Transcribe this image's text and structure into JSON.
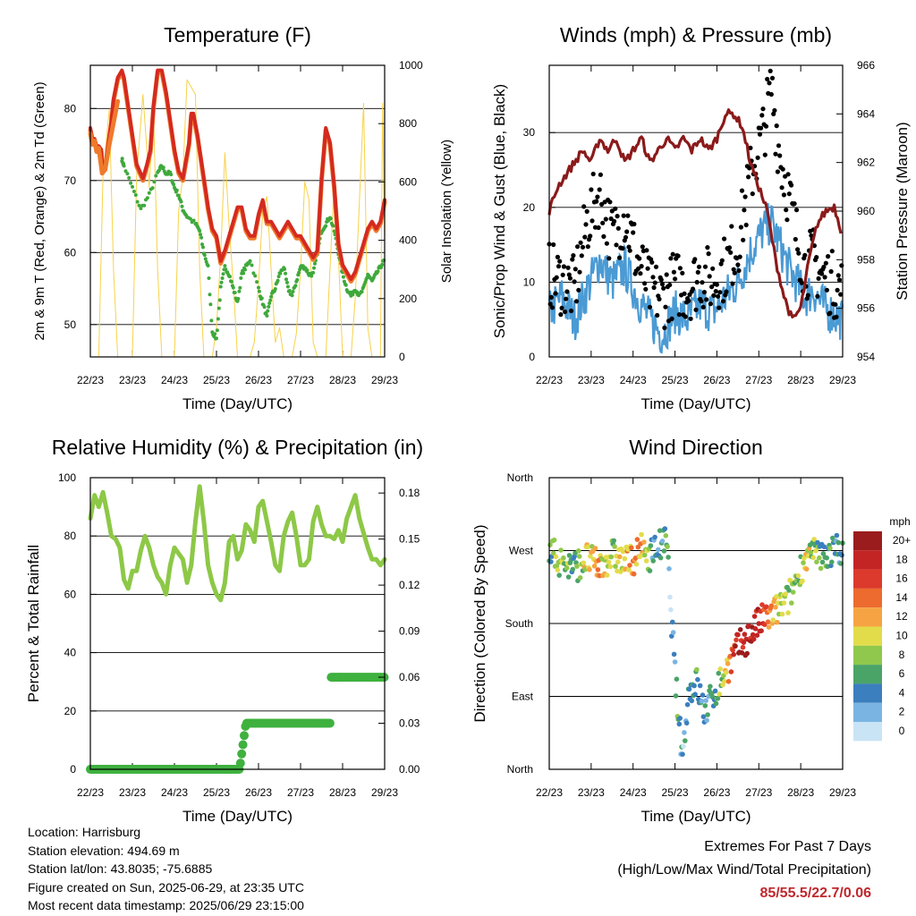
{
  "info": {
    "location": "Location: Harrisburg",
    "elevation": "Station elevation: 494.69 m",
    "latlon": "Station lat/lon: 43.8035; -75.6885",
    "created": "Figure created on Sun, 2025-06-29, at 23:35 UTC",
    "timestamp": "Most recent data timestamp: 2025/06/29 23:15:00"
  },
  "extremes": {
    "title": "Extremes For Past 7 Days",
    "subtitle": "(High/Low/Max Wind/Total Precipitation)",
    "values": "85/55.5/22.7/0.06"
  },
  "colors": {
    "temp2m": "#f07a2c",
    "temp9m": "#d42a20",
    "dewpoint": "#3fa83c",
    "solar": "#f7d24a",
    "wind": "#4a9ad4",
    "gust": "#000000",
    "pressure": "#8b1a1a",
    "rh": "#8dc847",
    "rain": "#3fb13f"
  },
  "chart_data": [
    {
      "type": "line",
      "title": "Temperature (F)",
      "xlabel": "Time (Day/UTC)",
      "ylabel": "2m & 9m T (Red, Orange) & 2m Td (Green)",
      "y2label": "Solar Insolation (Yellow)",
      "x_ticks": [
        "22/23",
        "23/23",
        "24/23",
        "25/23",
        "26/23",
        "27/23",
        "28/23",
        "29/23"
      ],
      "ylim": [
        45.5,
        86
      ],
      "y_ticks": [
        50,
        60,
        70,
        80
      ],
      "y2lim": [
        0,
        1000
      ],
      "y2_ticks": [
        0,
        200,
        400,
        600,
        800,
        1000
      ],
      "grid": true,
      "series": [
        {
          "key": "temp2m",
          "x": [
            0,
            0.05,
            0.1,
            0.15,
            0.2,
            0.28,
            0.35,
            0.45,
            0.55,
            0.65
          ],
          "values": [
            76.5,
            75,
            75.5,
            74,
            74.5,
            71,
            71.5,
            75,
            78,
            81
          ]
        },
        {
          "key": "temp9m",
          "x": [
            0,
            0.05,
            0.1,
            0.15,
            0.2,
            0.26,
            0.28,
            0.35,
            0.43,
            0.5,
            0.55,
            0.65,
            0.75,
            0.8,
            0.9,
            1.0,
            1.1,
            1.25,
            1.35,
            1.43,
            1.5,
            1.6,
            1.7,
            1.8,
            1.9,
            2.0,
            2.1,
            2.2,
            2.35,
            2.4,
            2.45,
            2.55,
            2.65,
            2.75,
            2.8,
            2.9,
            3.0,
            3.1,
            3.2,
            3.3,
            3.4,
            3.5,
            3.6,
            3.7,
            3.8,
            3.9,
            4.0,
            4.1,
            4.2,
            4.3,
            4.4,
            4.5,
            4.6,
            4.7,
            4.8,
            4.9,
            5.0,
            5.1,
            5.2,
            5.3,
            5.4,
            5.5,
            5.6,
            5.7,
            5.8,
            5.9,
            6.0,
            6.1,
            6.2,
            6.3,
            6.4,
            6.5,
            6.6,
            6.7,
            6.8,
            6.9,
            7.0
          ],
          "values": [
            77,
            75.5,
            75.5,
            74.5,
            74.5,
            74,
            72,
            71.5,
            75,
            78,
            81,
            84,
            85,
            84,
            80,
            76,
            72,
            70,
            72,
            74,
            80,
            85,
            85,
            82,
            78,
            74,
            71,
            70,
            75,
            79,
            79,
            76,
            72,
            68,
            66,
            63,
            62,
            58.5,
            60,
            62,
            64,
            66,
            66,
            63,
            62,
            62,
            65,
            67,
            64,
            64,
            63,
            62,
            63,
            64,
            63,
            62,
            62,
            61,
            60,
            59,
            60,
            70,
            77,
            75,
            69,
            61,
            58,
            57,
            56,
            57,
            59,
            61,
            63,
            64,
            63,
            64,
            67
          ]
        },
        {
          "key": "dewpoint",
          "x": [
            0.75,
            0.8,
            1.0,
            1.2,
            1.4,
            1.6,
            1.7,
            1.8,
            1.9,
            2.0,
            2.1,
            2.2,
            2.3,
            2.5,
            2.6,
            2.7,
            2.8,
            2.9,
            3.0,
            3.1,
            3.2,
            3.3,
            3.4,
            3.5,
            3.6,
            3.7,
            3.8,
            4.0,
            4.1,
            4.2,
            4.3,
            4.4,
            4.5,
            4.6,
            4.7,
            4.8,
            4.9,
            5.0,
            5.1,
            5.2,
            5.3,
            5.4,
            5.5,
            5.6,
            5.7,
            5.8,
            5.9,
            6.0,
            6.1,
            6.2,
            6.3,
            6.4,
            6.5,
            6.6,
            6.7,
            6.8,
            6.9,
            7.0
          ],
          "values": [
            73,
            72,
            69,
            66,
            68,
            71,
            72,
            71,
            71,
            69,
            68,
            66,
            65,
            64,
            63,
            60,
            58,
            49,
            48,
            55,
            58,
            57,
            55,
            53,
            57,
            58,
            59,
            55,
            53,
            51,
            54,
            55,
            57,
            58,
            55,
            54,
            56,
            58,
            58,
            57,
            57,
            60,
            63,
            64,
            65,
            63,
            60,
            57,
            55,
            54,
            55,
            54,
            55,
            57,
            56,
            57,
            58,
            59
          ]
        },
        {
          "key": "solar",
          "axis": "y2",
          "x": [
            0.1,
            0.2,
            0.3,
            0.45,
            0.55,
            0.65,
            0.75,
            0.9,
            1.0,
            1.1,
            1.25,
            1.35,
            1.4,
            1.5,
            1.6,
            1.7,
            1.8,
            1.9,
            2.0,
            2.1,
            2.2,
            2.3,
            2.5,
            2.6,
            2.7,
            2.8,
            2.9,
            3.0,
            3.1,
            3.2,
            3.3,
            3.4,
            3.5,
            3.6,
            3.7,
            3.8,
            3.9,
            4.0,
            4.1,
            4.2,
            4.4,
            4.5,
            4.6,
            4.7,
            4.8,
            4.9,
            5.0,
            5.1,
            5.2,
            5.3,
            5.4,
            5.5,
            5.6,
            5.7,
            5.8,
            5.9,
            6.0,
            6.1,
            6.2,
            6.3,
            6.5,
            6.6,
            6.7,
            6.8,
            6.9,
            6.95,
            7.0
          ],
          "values": [
            0,
            0,
            620,
            850,
            300,
            0,
            0,
            0,
            0,
            620,
            900,
            700,
            580,
            850,
            300,
            0,
            0,
            0,
            0,
            500,
            620,
            950,
            900,
            300,
            0,
            0,
            0,
            100,
            350,
            700,
            450,
            250,
            0,
            0,
            0,
            0,
            50,
            250,
            500,
            550,
            50,
            100,
            0,
            0,
            0,
            80,
            300,
            600,
            540,
            50,
            0,
            0,
            0,
            300,
            600,
            350,
            0,
            0,
            0,
            200,
            870,
            100,
            0,
            0,
            0,
            870,
            400
          ]
        }
      ]
    },
    {
      "type": "line",
      "title": "Winds (mph) & Pressure (mb)",
      "xlabel": "Time (Day/UTC)",
      "ylabel": "Sonic/Prop Wind & Gust (Blue, Black)",
      "y2label": "Station Pressure (Maroon)",
      "x_ticks": [
        "22/23",
        "23/23",
        "24/23",
        "25/23",
        "26/23",
        "27/23",
        "28/23",
        "29/23"
      ],
      "ylim": [
        0,
        39
      ],
      "y_ticks": [
        0,
        10,
        20,
        30
      ],
      "y2lim": [
        954,
        966
      ],
      "y2_ticks": [
        954,
        956,
        958,
        960,
        962,
        964,
        966
      ],
      "grid": true,
      "series": [
        {
          "key": "wind",
          "x": [
            0,
            0.3,
            0.6,
            0.9,
            1.2,
            1.5,
            1.8,
            2.1,
            2.4,
            2.7,
            3.0,
            3.3,
            3.6,
            3.9,
            4.2,
            4.5,
            4.8,
            5.1,
            5.3,
            5.5,
            5.7,
            5.9,
            6.1,
            6.3,
            6.5,
            6.7,
            7.0
          ],
          "values": [
            6,
            8,
            5,
            9,
            13,
            10,
            12,
            8,
            5,
            3,
            6,
            5,
            7,
            6,
            8,
            10,
            14,
            17,
            18,
            15,
            12,
            10,
            8,
            9,
            7,
            6,
            5
          ]
        },
        {
          "key": "gust",
          "x": [
            0,
            0.3,
            0.6,
            0.9,
            1.2,
            1.5,
            1.8,
            2.1,
            2.4,
            2.7,
            3.0,
            3.3,
            3.6,
            3.9,
            4.2,
            4.5,
            4.8,
            5.1,
            5.3,
            5.5,
            5.7,
            5.9,
            6.1,
            6.3,
            6.5,
            6.7,
            7.0
          ],
          "values": [
            11,
            10,
            9,
            18,
            22,
            16,
            19,
            13,
            9,
            8,
            10,
            9,
            11,
            10,
            12,
            15,
            24,
            30,
            36,
            27,
            22,
            16,
            12,
            13,
            11,
            10,
            9
          ]
        },
        {
          "key": "pressure",
          "axis": "y2",
          "x": [
            0,
            0.2,
            0.4,
            0.6,
            0.8,
            1.0,
            1.2,
            1.4,
            1.6,
            1.8,
            2.0,
            2.2,
            2.4,
            2.6,
            2.8,
            3.0,
            3.2,
            3.4,
            3.6,
            3.8,
            4.0,
            4.2,
            4.4,
            4.6,
            4.8,
            5.0,
            5.2,
            5.4,
            5.6,
            5.8,
            6.0,
            6.2,
            6.4,
            6.6,
            6.8,
            7.0
          ],
          "values": [
            960,
            961,
            961.5,
            962,
            962.5,
            962,
            963,
            962.5,
            963,
            962,
            962.5,
            963,
            962,
            962.5,
            963,
            962.5,
            963,
            962.5,
            963,
            962.5,
            963,
            964,
            964,
            963.5,
            962,
            961,
            960,
            958,
            956.5,
            955.5,
            956,
            958,
            959.5,
            960,
            960.2,
            959
          ]
        }
      ]
    },
    {
      "type": "line",
      "title": "Relative Humidity (%) & Precipitation (in)",
      "xlabel": "Time (Day/UTC)",
      "ylabel": "Percent & Total Rainfall",
      "x_ticks": [
        "22/23",
        "23/23",
        "24/23",
        "25/23",
        "26/23",
        "27/23",
        "28/23",
        "29/23"
      ],
      "ylim": [
        0,
        100
      ],
      "y_ticks": [
        0,
        20,
        40,
        60,
        80,
        100
      ],
      "y2lim": [
        0,
        0.19
      ],
      "y2_ticks": [
        "0.00",
        "0.03",
        "0.06",
        "0.09",
        "0.12",
        "0.15",
        "0.18"
      ],
      "grid": true,
      "series": [
        {
          "key": "rh",
          "x": [
            0,
            0.1,
            0.2,
            0.3,
            0.4,
            0.5,
            0.6,
            0.7,
            0.8,
            0.9,
            1.0,
            1.1,
            1.2,
            1.3,
            1.4,
            1.5,
            1.6,
            1.7,
            1.8,
            1.9,
            2.0,
            2.1,
            2.2,
            2.3,
            2.4,
            2.5,
            2.6,
            2.7,
            2.8,
            2.9,
            3.0,
            3.1,
            3.2,
            3.3,
            3.4,
            3.5,
            3.6,
            3.7,
            3.8,
            3.9,
            4.0,
            4.1,
            4.2,
            4.3,
            4.4,
            4.5,
            4.6,
            4.7,
            4.8,
            4.9,
            5.0,
            5.1,
            5.2,
            5.3,
            5.4,
            5.5,
            5.6,
            5.7,
            5.8,
            5.9,
            6.0,
            6.1,
            6.2,
            6.3,
            6.4,
            6.5,
            6.6,
            6.7,
            6.8,
            6.9,
            7.0
          ],
          "values": [
            86,
            94,
            90,
            95,
            88,
            80,
            79,
            76,
            65,
            62,
            68,
            68,
            75,
            80,
            76,
            70,
            66,
            64,
            60,
            70,
            76,
            74,
            72,
            64,
            70,
            85,
            97,
            85,
            70,
            64,
            60,
            58,
            64,
            78,
            80,
            72,
            75,
            84,
            82,
            78,
            90,
            92,
            85,
            78,
            70,
            68,
            80,
            85,
            88,
            80,
            70,
            70,
            72,
            85,
            90,
            84,
            80,
            80,
            79,
            82,
            78,
            86,
            90,
            94,
            86,
            81,
            76,
            72,
            72,
            70,
            72
          ]
        },
        {
          "key": "rain",
          "axis": "y2",
          "x": [
            0,
            1.0,
            2.0,
            3.0,
            3.55,
            3.6,
            3.65,
            3.7,
            3.75,
            4.5,
            5.0,
            5.7,
            5.72,
            5.75,
            5.8,
            6.0,
            7.0
          ],
          "values": [
            0,
            0,
            0,
            0,
            0,
            0.01,
            0.02,
            0.03,
            0.03,
            0.03,
            0.03,
            0.03,
            0.06,
            0.06,
            0.06,
            0.06,
            0.06
          ]
        }
      ]
    },
    {
      "type": "scatter",
      "title": "Wind Direction",
      "xlabel": "Time (Day/UTC)",
      "ylabel": "Direction (Colored By Speed)",
      "x_ticks": [
        "22/23",
        "23/23",
        "24/23",
        "25/23",
        "26/23",
        "27/23",
        "28/23",
        "29/23"
      ],
      "y_ticks": [
        "North",
        "East",
        "South",
        "West",
        "North"
      ],
      "ylim": [
        0,
        360
      ],
      "grid": true,
      "legend": {
        "title": "mph",
        "placement": "right",
        "labels": [
          "20+",
          "18",
          "16",
          "14",
          "12",
          "10",
          "8",
          "6",
          "4",
          "2",
          "0"
        ],
        "colors": [
          "#9b1c1c",
          "#c32424",
          "#dc3a2c",
          "#ed6b2f",
          "#f6a443",
          "#e2dc4a",
          "#8fc84c",
          "#4aa467",
          "#3b7fbe",
          "#7ab4e2",
          "#c9e4f5"
        ]
      },
      "series": [
        {
          "x": [
            0,
            0.3,
            0.6,
            0.9,
            1.2,
            1.5,
            1.8,
            2.0,
            2.2,
            2.4,
            2.6,
            2.8,
            2.9,
            3.0,
            3.1,
            3.2,
            3.3,
            3.5,
            3.7,
            3.9,
            4.1,
            4.3,
            4.5,
            4.7,
            4.9,
            5.1,
            5.3,
            5.5,
            5.7,
            5.9,
            6.1,
            6.3,
            6.5,
            6.7,
            6.9,
            7.0
          ],
          "values": [
            270,
            255,
            250,
            260,
            250,
            265,
            255,
            260,
            270,
            265,
            275,
            280,
            200,
            120,
            50,
            20,
            90,
            110,
            70,
            90,
            110,
            130,
            150,
            160,
            175,
            185,
            190,
            200,
            210,
            235,
            260,
            265,
            262,
            268,
            272,
            275
          ],
          "speeds": [
            6,
            8,
            6,
            10,
            12,
            8,
            10,
            14,
            12,
            6,
            4,
            6,
            2,
            4,
            6,
            3,
            5,
            6,
            4,
            5,
            8,
            14,
            18,
            20,
            18,
            16,
            12,
            10,
            8,
            6,
            10,
            8,
            6,
            6,
            4,
            6
          ]
        }
      ]
    }
  ]
}
